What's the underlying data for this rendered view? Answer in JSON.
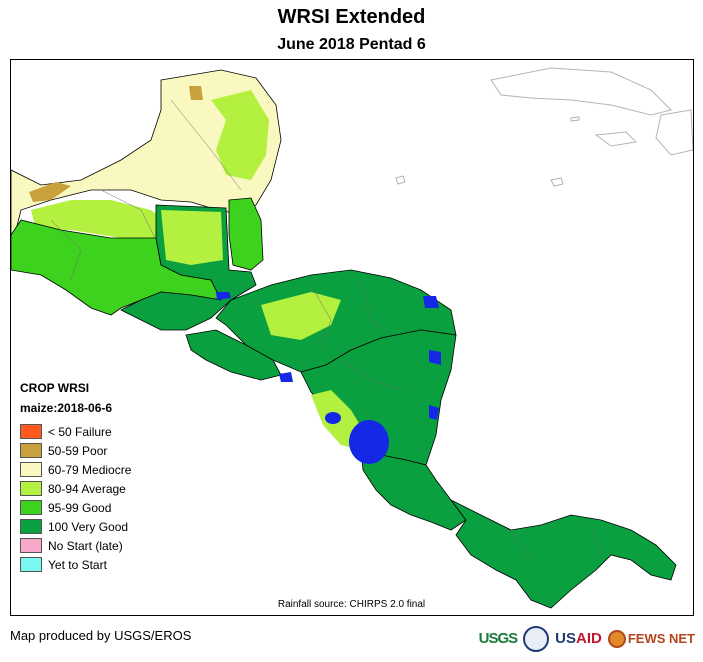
{
  "header": {
    "title": "WRSI Extended",
    "subtitle": "June 2018 Pentad 6"
  },
  "legend": {
    "title": "CROP WRSI",
    "subtitle": "maize:2018-06-6",
    "items": [
      {
        "label": "< 50  Failure",
        "color": "#ff5a1e"
      },
      {
        "label": "50-59 Poor",
        "color": "#c8a03c"
      },
      {
        "label": "60-79 Mediocre",
        "color": "#f8f8c0"
      },
      {
        "label": "80-94 Average",
        "color": "#b4f040"
      },
      {
        "label": "95-99 Good",
        "color": "#3cd21e"
      },
      {
        "label": "100 Very Good",
        "color": "#0aa040"
      },
      {
        "label": "No Start (late)",
        "color": "#f8a8c8"
      },
      {
        "label": "Yet to Start",
        "color": "#78f8f0"
      }
    ]
  },
  "footer": {
    "rainfall_source": "Rainfall source: CHIRPS 2.0 final",
    "produced_by": "Map produced by USGS/EROS"
  },
  "logos": {
    "usgs": "USGS",
    "usaid_a": "US",
    "usaid_b": "AID",
    "fews": "FEWS NET"
  },
  "colors": {
    "water": "#1428e6",
    "land_outline": "#000000",
    "coast_gray": "#b4b4b4"
  }
}
